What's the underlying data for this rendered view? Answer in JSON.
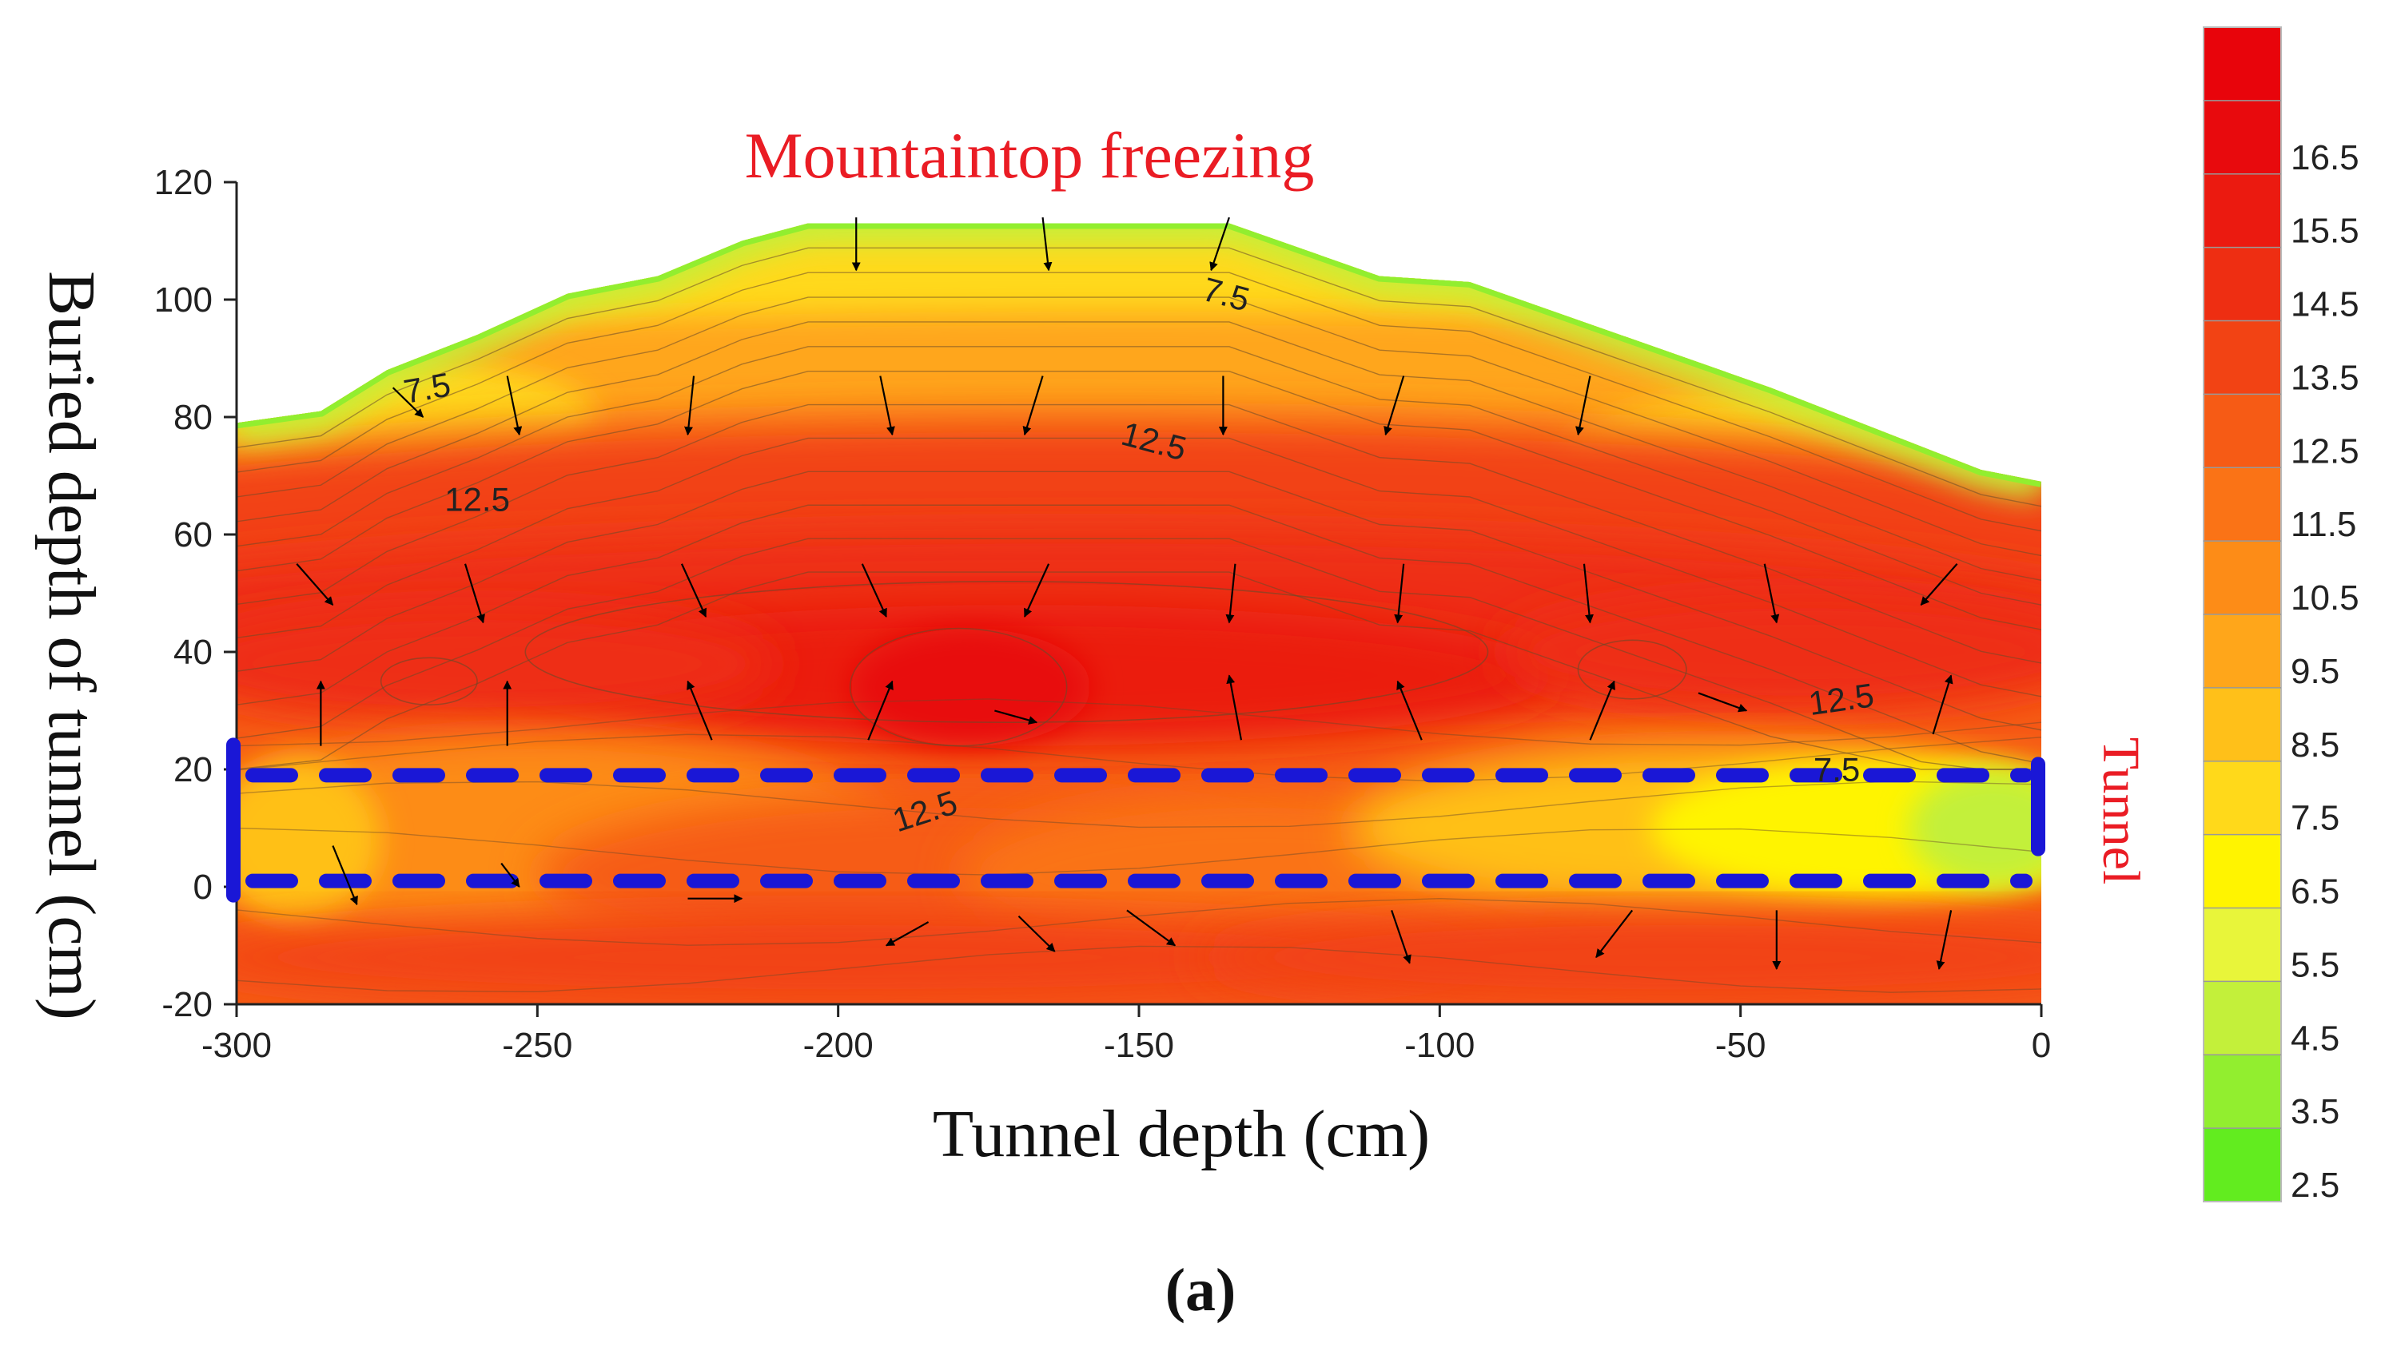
{
  "chart_data": {
    "type": "heatmap",
    "title": "Mountaintop freezing",
    "xlabel": "Tunnel depth (cm)",
    "ylabel": "Buried depth of tunnel (cm)",
    "caption": "(a)",
    "xlim": [
      -300,
      0
    ],
    "ylim": [
      -20,
      120
    ],
    "x_ticks": [
      -300,
      -250,
      -200,
      -150,
      -100,
      -50,
      0
    ],
    "y_ticks": [
      -20,
      0,
      20,
      40,
      60,
      80,
      100,
      120
    ],
    "colorbar": {
      "labels": [
        "2.5",
        "3.5",
        "4.5",
        "5.5",
        "6.5",
        "7.5",
        "8.5",
        "9.5",
        "10.5",
        "11.5",
        "12.5",
        "13.5",
        "14.5",
        "15.5",
        "16.5"
      ],
      "colors": [
        "#62ec1f",
        "#92ee2f",
        "#c3f03a",
        "#e8f53a",
        "#fff400",
        "#ffd91a",
        "#ffc019",
        "#ffa61a",
        "#fd8c17",
        "#fa7316",
        "#f65b15",
        "#f24314",
        "#ee2e12",
        "#eb1a10",
        "#e80a0d",
        "#e8040b"
      ]
    },
    "region_label": "Tunnel",
    "tunnel": {
      "x_range": [
        -300,
        0
      ],
      "y_range": [
        1,
        19
      ]
    },
    "top_boundary": [
      {
        "x": -300,
        "y": 79
      },
      {
        "x": -286,
        "y": 81
      },
      {
        "x": -275,
        "y": 88
      },
      {
        "x": -260,
        "y": 94
      },
      {
        "x": -245,
        "y": 101
      },
      {
        "x": -230,
        "y": 104
      },
      {
        "x": -216,
        "y": 110
      },
      {
        "x": -205,
        "y": 113
      },
      {
        "x": -180,
        "y": 113
      },
      {
        "x": -160,
        "y": 113
      },
      {
        "x": -135,
        "y": 113
      },
      {
        "x": -110,
        "y": 104
      },
      {
        "x": -95,
        "y": 103
      },
      {
        "x": -70,
        "y": 94
      },
      {
        "x": -45,
        "y": 85
      },
      {
        "x": -20,
        "y": 75
      },
      {
        "x": -10,
        "y": 71
      },
      {
        "x": 0,
        "y": 69
      }
    ],
    "contour_labels": [
      {
        "text": "7.5",
        "x": -268,
        "y": 83,
        "angle": -10
      },
      {
        "text": "12.5",
        "x": -260,
        "y": 64,
        "angle": 0
      },
      {
        "text": "7.5",
        "x": -136,
        "y": 99,
        "angle": 15
      },
      {
        "text": "12.5",
        "x": -148,
        "y": 74,
        "angle": 15
      },
      {
        "text": "12.5",
        "x": -185,
        "y": 11,
        "angle": -18
      },
      {
        "text": "12.5",
        "x": -33,
        "y": 30,
        "angle": -8
      },
      {
        "text": "7.5",
        "x": -34,
        "y": 18,
        "angle": 0
      }
    ],
    "vectors": [
      {
        "x": -197,
        "y": 114,
        "dx": 0,
        "dy": -9
      },
      {
        "x": -166,
        "y": 114,
        "dx": 1,
        "dy": -9
      },
      {
        "x": -135,
        "y": 114,
        "dx": -3,
        "dy": -9
      },
      {
        "x": -274,
        "y": 85,
        "dx": 5,
        "dy": -5
      },
      {
        "x": -255,
        "y": 87,
        "dx": 2,
        "dy": -10
      },
      {
        "x": -224,
        "y": 87,
        "dx": -1,
        "dy": -10
      },
      {
        "x": -193,
        "y": 87,
        "dx": 2,
        "dy": -10
      },
      {
        "x": -166,
        "y": 87,
        "dx": -3,
        "dy": -10
      },
      {
        "x": -136,
        "y": 87,
        "dx": 0,
        "dy": -10
      },
      {
        "x": -106,
        "y": 87,
        "dx": -3,
        "dy": -10
      },
      {
        "x": -75,
        "y": 87,
        "dx": -2,
        "dy": -10
      },
      {
        "x": -290,
        "y": 55,
        "dx": 6,
        "dy": -7
      },
      {
        "x": -262,
        "y": 55,
        "dx": 3,
        "dy": -10
      },
      {
        "x": -226,
        "y": 55,
        "dx": 4,
        "dy": -9
      },
      {
        "x": -196,
        "y": 55,
        "dx": 4,
        "dy": -9
      },
      {
        "x": -165,
        "y": 55,
        "dx": -4,
        "dy": -9
      },
      {
        "x": -134,
        "y": 55,
        "dx": -1,
        "dy": -10
      },
      {
        "x": -106,
        "y": 55,
        "dx": -1,
        "dy": -10
      },
      {
        "x": -76,
        "y": 55,
        "dx": 1,
        "dy": -10
      },
      {
        "x": -46,
        "y": 55,
        "dx": 2,
        "dy": -10
      },
      {
        "x": -14,
        "y": 55,
        "dx": -6,
        "dy": -7
      },
      {
        "x": -286,
        "y": 24,
        "dx": 0,
        "dy": 11
      },
      {
        "x": -255,
        "y": 24,
        "dx": 0,
        "dy": 11
      },
      {
        "x": -221,
        "y": 25,
        "dx": -4,
        "dy": 10
      },
      {
        "x": -195,
        "y": 25,
        "dx": 4,
        "dy": 10
      },
      {
        "x": -174,
        "y": 30,
        "dx": 7,
        "dy": -2
      },
      {
        "x": -133,
        "y": 25,
        "dx": -2,
        "dy": 11
      },
      {
        "x": -103,
        "y": 25,
        "dx": -4,
        "dy": 10
      },
      {
        "x": -75,
        "y": 25,
        "dx": 4,
        "dy": 10
      },
      {
        "x": -57,
        "y": 33,
        "dx": 8,
        "dy": -3
      },
      {
        "x": -18,
        "y": 26,
        "dx": 3,
        "dy": 10
      },
      {
        "x": -284,
        "y": 7,
        "dx": 4,
        "dy": -10
      },
      {
        "x": -256,
        "y": 4,
        "dx": 3,
        "dy": -4
      },
      {
        "x": -225,
        "y": -2,
        "dx": 9,
        "dy": 0
      },
      {
        "x": -185,
        "y": -6,
        "dx": -7,
        "dy": -4
      },
      {
        "x": -170,
        "y": -5,
        "dx": 6,
        "dy": -6
      },
      {
        "x": -152,
        "y": -4,
        "dx": 8,
        "dy": -6
      },
      {
        "x": -108,
        "y": -4,
        "dx": 3,
        "dy": -9
      },
      {
        "x": -68,
        "y": -4,
        "dx": -6,
        "dy": -8
      },
      {
        "x": -44,
        "y": -4,
        "dx": 0,
        "dy": -10
      },
      {
        "x": -15,
        "y": -4,
        "dx": -2,
        "dy": -10
      }
    ]
  }
}
